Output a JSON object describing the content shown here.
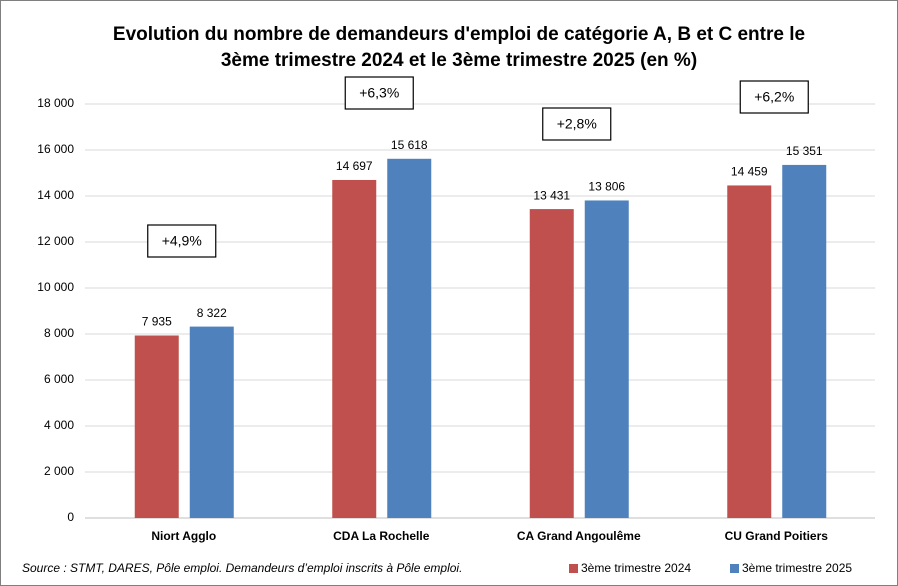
{
  "chart_data": {
    "type": "bar",
    "title": "Evolution du nombre de demandeurs d'emploi de catégorie A, B et C entre le 3ème trimestre 2024 et le 3ème trimestre 2025 (en %)",
    "categories": [
      "Niort Agglo",
      "CDA La Rochelle",
      "CA Grand Angoulême",
      "CU Grand Poitiers"
    ],
    "series": [
      {
        "name": "3ème trimestre 2024",
        "color": "#c0504d",
        "values": [
          7935,
          14697,
          13431,
          14459
        ],
        "value_labels": [
          "7 935",
          "14 697",
          "13 431",
          "14 459"
        ]
      },
      {
        "name": "3ème trimestre 2025",
        "color": "#4f81bd",
        "values": [
          8322,
          15618,
          13806,
          15351
        ],
        "value_labels": [
          "8 322",
          "15 618",
          "13 806",
          "15 351"
        ]
      }
    ],
    "annotations": [
      "+4,9%",
      "+6,3%",
      "+2,8%",
      "+6,2%"
    ],
    "ylim": [
      0,
      18000
    ],
    "yticks": [
      0,
      {
        "value": 2000,
        "label": "2 000"
      },
      {
        "value": 4000,
        "label": "4 000"
      },
      {
        "value": 6000,
        "label": "6 000"
      },
      {
        "value": 8000,
        "label": "8 000"
      },
      {
        "value": 10000,
        "label": "10 000"
      },
      {
        "value": 12000,
        "label": "12 000"
      },
      {
        "value": 14000,
        "label": "14 000"
      },
      {
        "value": 16000,
        "label": "16 000"
      },
      {
        "value": 18000,
        "label": "18 000"
      }
    ],
    "grid": true,
    "legend": "bottom-right",
    "source": "Source : STMT, DARES, Pôle emploi. Demandeurs d’emploi inscrits à Pôle emploi."
  }
}
